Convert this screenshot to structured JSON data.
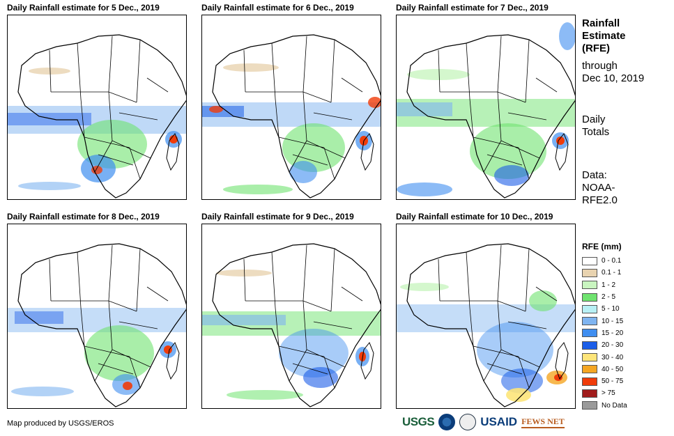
{
  "panels": [
    {
      "title": "Daily Rainfall estimate for 5 Dec., 2019"
    },
    {
      "title": "Daily Rainfall estimate for 6 Dec., 2019"
    },
    {
      "title": "Daily Rainfall estimate for 7 Dec., 2019"
    },
    {
      "title": "Daily Rainfall estimate for 8 Dec., 2019"
    },
    {
      "title": "Daily Rainfall estimate for 9 Dec., 2019"
    },
    {
      "title": "Daily Rainfall estimate for 10 Dec., 2019"
    }
  ],
  "side": {
    "title_line1": "Rainfall",
    "title_line2": "Estimate",
    "title_line3": "(RFE)",
    "through": "through",
    "date": "Dec 10, 2019",
    "totals_line1": "Daily",
    "totals_line2": "Totals",
    "data_line1": "Data:",
    "data_line2": "NOAA-",
    "data_line3": "RFE2.0"
  },
  "legend": {
    "title": "RFE (mm)",
    "items": [
      {
        "label": "0 - 0.1",
        "color": "#ffffff"
      },
      {
        "label": "0.1 - 1",
        "color": "#e8d3b0"
      },
      {
        "label": "1 - 2",
        "color": "#c9f5c0"
      },
      {
        "label": "2 - 5",
        "color": "#6fe36f"
      },
      {
        "label": "5 - 10",
        "color": "#b8f0f5"
      },
      {
        "label": "10 - 15",
        "color": "#7fb4f0"
      },
      {
        "label": "15 - 20",
        "color": "#3f8ef0"
      },
      {
        "label": "20 - 30",
        "color": "#1c5ee8"
      },
      {
        "label": "30 - 40",
        "color": "#fde57a"
      },
      {
        "label": "40 - 50",
        "color": "#f5a623"
      },
      {
        "label": "50 - 75",
        "color": "#f03c0a"
      },
      {
        "label": "> 75",
        "color": "#a01c1c"
      },
      {
        "label": "No Data",
        "color": "#9a9a9a"
      }
    ]
  },
  "footer": {
    "credit": "Map produced by USGS/EROS",
    "logos": [
      "USGS",
      "NOAA",
      "DHS",
      "USAID",
      "FEWS NET"
    ]
  }
}
